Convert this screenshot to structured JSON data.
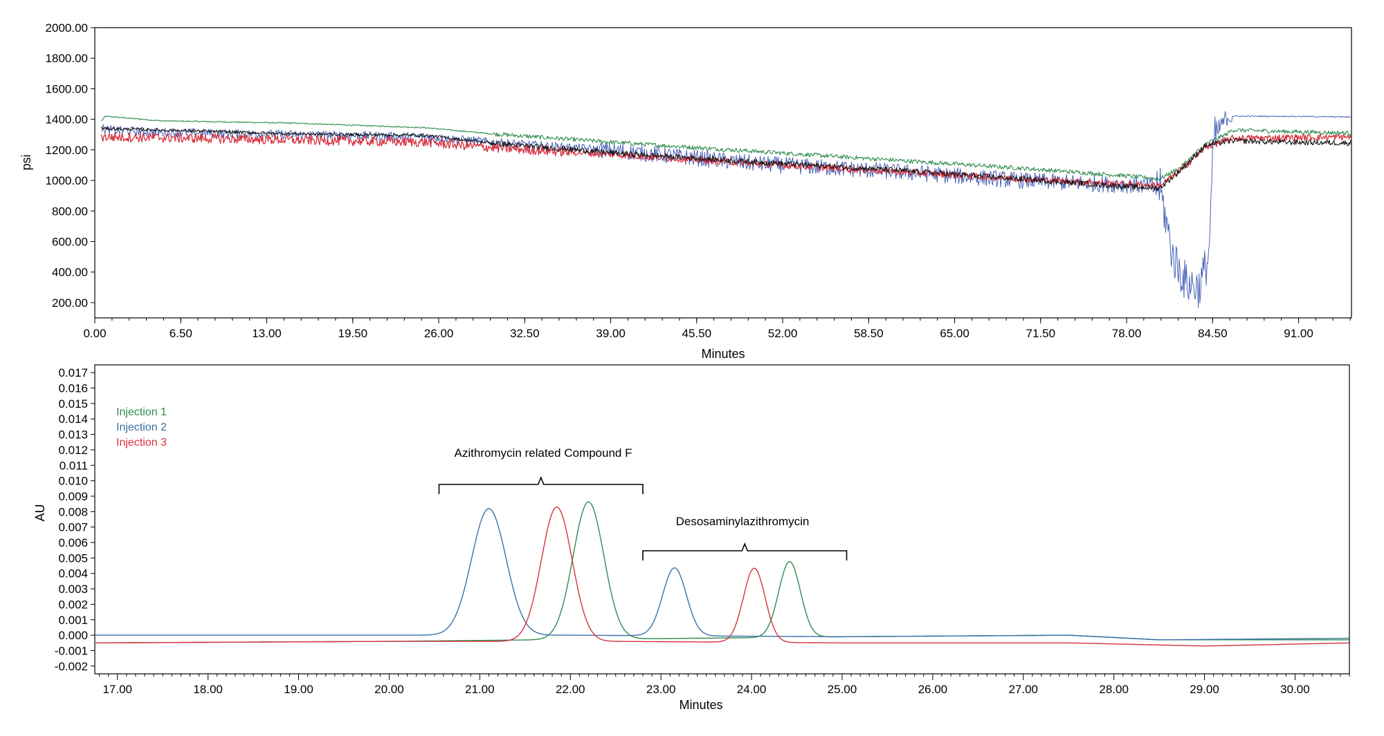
{
  "chart_data": [
    {
      "type": "line",
      "xlabel": "Minutes",
      "ylabel": "psi",
      "xlim": [
        0,
        95
      ],
      "ylim": [
        100,
        2000
      ],
      "x_ticks": [
        "0.00",
        "6.50",
        "13.00",
        "19.50",
        "26.00",
        "32.50",
        "39.00",
        "45.50",
        "52.00",
        "58.50",
        "65.00",
        "71.50",
        "78.00",
        "84.50",
        "91.00"
      ],
      "y_ticks": [
        "200.00",
        "400.00",
        "600.00",
        "800.00",
        "1000.00",
        "1200.00",
        "1400.00",
        "1600.00",
        "1800.00",
        "2000.00"
      ],
      "grid": false,
      "series": [
        {
          "color": "#2e8b4e",
          "x": [
            0.5,
            0.8,
            5,
            15,
            25,
            30,
            40,
            50,
            60,
            70,
            78,
            80.5,
            82,
            84,
            85.5,
            86,
            90,
            95
          ],
          "y": [
            1390,
            1420,
            1390,
            1375,
            1345,
            1305,
            1245,
            1190,
            1135,
            1080,
            1030,
            1010,
            1080,
            1240,
            1300,
            1330,
            1320,
            1310
          ]
        },
        {
          "color": "#3a55b0",
          "x": [
            0.5,
            1,
            5,
            15,
            25,
            30,
            40,
            50,
            60,
            70,
            78,
            80.5,
            81.5,
            82.5,
            83.5,
            84.2,
            84.6,
            85.5,
            86,
            90,
            95
          ],
          "y": [
            1340,
            1330,
            1315,
            1300,
            1285,
            1250,
            1190,
            1110,
            1060,
            1000,
            970,
            960,
            500,
            330,
            300,
            500,
            1270,
            1410,
            1420,
            1420,
            1415
          ]
        },
        {
          "color": "#d6303d",
          "x": [
            0.5,
            5,
            15,
            25,
            30,
            40,
            50,
            60,
            70,
            78,
            80.5,
            82,
            84,
            86,
            90,
            95
          ],
          "y": [
            1285,
            1280,
            1265,
            1250,
            1215,
            1165,
            1110,
            1060,
            1010,
            975,
            965,
            1060,
            1220,
            1275,
            1280,
            1285
          ]
        },
        {
          "color": "#111111",
          "x": [
            0.5,
            5,
            15,
            25,
            30,
            40,
            50,
            60,
            70,
            78,
            80.5,
            82,
            84,
            86,
            90,
            95
          ],
          "y": [
            1340,
            1330,
            1305,
            1295,
            1245,
            1175,
            1120,
            1070,
            1010,
            960,
            950,
            1060,
            1230,
            1260,
            1250,
            1245
          ]
        }
      ]
    },
    {
      "type": "line",
      "xlabel": "Minutes",
      "ylabel": "AU",
      "xlim": [
        16.75,
        30.6
      ],
      "ylim": [
        -0.0025,
        0.0175
      ],
      "x_ticks": [
        "17.00",
        "18.00",
        "19.00",
        "20.00",
        "21.00",
        "22.00",
        "23.00",
        "24.00",
        "25.00",
        "26.00",
        "27.00",
        "28.00",
        "29.00",
        "30.00"
      ],
      "y_ticks": [
        "-0.002",
        "-0.001",
        "0.000",
        "0.001",
        "0.002",
        "0.003",
        "0.004",
        "0.005",
        "0.006",
        "0.007",
        "0.008",
        "0.009",
        "0.010",
        "0.011",
        "0.012",
        "0.013",
        "0.014",
        "0.015",
        "0.016",
        "0.017"
      ],
      "grid": false,
      "legend": {
        "position": "top-left",
        "entries": [
          "Injection 1",
          "Injection 2",
          "Injection 3"
        ],
        "colors": [
          "#2e8b4e",
          "#3a6fa8",
          "#d6303d"
        ]
      },
      "annotations": [
        {
          "text": "Azithromycin related Compound F",
          "bracket_x": [
            20.55,
            22.8
          ]
        },
        {
          "text": "Desosaminylazithromycin",
          "bracket_x": [
            22.8,
            25.05
          ]
        }
      ],
      "series": [
        {
          "name": "Injection 1",
          "color": "#2e8b4e",
          "peaks": [
            {
              "x": 22.2,
              "height": 0.0089,
              "sigma": 0.17
            },
            {
              "x": 24.42,
              "height": 0.0049,
              "sigma": 0.12
            }
          ],
          "baseline": [
            [
              16.75,
              -0.0005
            ],
            [
              20,
              -0.0004
            ],
            [
              25,
              -0.0001
            ],
            [
              27.5,
              0.0
            ],
            [
              28.5,
              -0.0003
            ],
            [
              30.6,
              -0.0003
            ]
          ]
        },
        {
          "name": "Injection 2",
          "color": "#3a6fa8",
          "peaks": [
            {
              "x": 21.1,
              "height": 0.0082,
              "sigma": 0.19
            },
            {
              "x": 23.15,
              "height": 0.0044,
              "sigma": 0.13
            }
          ],
          "baseline": [
            [
              16.75,
              0.0
            ],
            [
              20,
              0.0
            ],
            [
              22,
              0.0
            ],
            [
              25,
              -0.0001
            ],
            [
              27.5,
              0.0
            ],
            [
              28.5,
              -0.0003
            ],
            [
              30.6,
              -0.0002
            ]
          ]
        },
        {
          "name": "Injection 3",
          "color": "#d6303d",
          "peaks": [
            {
              "x": 21.85,
              "height": 0.0087,
              "sigma": 0.17
            },
            {
              "x": 24.03,
              "height": 0.0048,
              "sigma": 0.12
            }
          ],
          "baseline": [
            [
              16.75,
              -0.0005
            ],
            [
              20,
              -0.0004
            ],
            [
              22.5,
              -0.0004
            ],
            [
              25,
              -0.0005
            ],
            [
              27.5,
              -0.0005
            ],
            [
              29,
              -0.0007
            ],
            [
              30.6,
              -0.0005
            ]
          ]
        }
      ]
    }
  ]
}
